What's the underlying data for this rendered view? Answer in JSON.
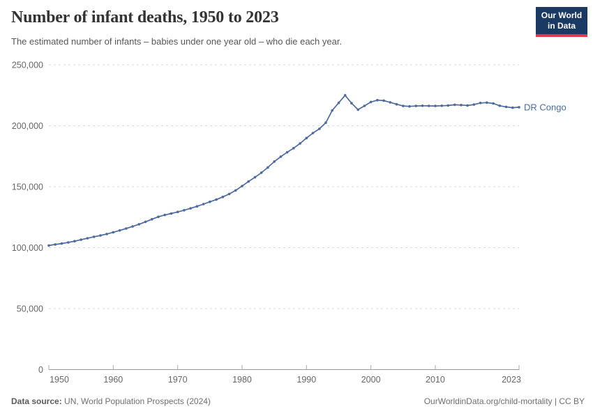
{
  "header": {
    "title": "Number of infant deaths, 1950 to 2023",
    "subtitle": "The estimated number of infants – babies under one year old – who die each year.",
    "logo": {
      "line1": "Our World",
      "line2": "in Data"
    }
  },
  "chart_data": {
    "type": "line",
    "title": "Number of infant deaths, 1950 to 2023",
    "xlabel": "",
    "ylabel": "",
    "xlim": [
      1950,
      2023
    ],
    "ylim": [
      0,
      250000
    ],
    "grid": "dashed-horizontal",
    "legend_position": "end-of-line-label",
    "x_ticks": [
      {
        "value": 1950,
        "label": "1950"
      },
      {
        "value": 1960,
        "label": "1960"
      },
      {
        "value": 1970,
        "label": "1970"
      },
      {
        "value": 1980,
        "label": "1980"
      },
      {
        "value": 1990,
        "label": "1990"
      },
      {
        "value": 2000,
        "label": "2000"
      },
      {
        "value": 2010,
        "label": "2010"
      },
      {
        "value": 2023,
        "label": "2023"
      }
    ],
    "y_ticks": [
      {
        "value": 0,
        "label": "0"
      },
      {
        "value": 50000,
        "label": "50,000"
      },
      {
        "value": 100000,
        "label": "100,000"
      },
      {
        "value": 150000,
        "label": "150,000"
      },
      {
        "value": 200000,
        "label": "200,000"
      },
      {
        "value": 250000,
        "label": "250,000"
      }
    ],
    "series": [
      {
        "name": "DR Congo",
        "color": "#4c6a9c",
        "x": [
          1950,
          1951,
          1952,
          1953,
          1954,
          1955,
          1956,
          1957,
          1958,
          1959,
          1960,
          1961,
          1962,
          1963,
          1964,
          1965,
          1966,
          1967,
          1968,
          1969,
          1970,
          1971,
          1972,
          1973,
          1974,
          1975,
          1976,
          1977,
          1978,
          1979,
          1980,
          1981,
          1982,
          1983,
          1984,
          1985,
          1986,
          1987,
          1988,
          1989,
          1990,
          1991,
          1992,
          1993,
          1994,
          1995,
          1996,
          1997,
          1998,
          1999,
          2000,
          2001,
          2002,
          2003,
          2004,
          2005,
          2006,
          2007,
          2008,
          2009,
          2010,
          2011,
          2012,
          2013,
          2014,
          2015,
          2016,
          2017,
          2018,
          2019,
          2020,
          2021,
          2022,
          2023
        ],
        "values": [
          101800,
          102600,
          103400,
          104300,
          105300,
          106500,
          107700,
          108900,
          110000,
          111200,
          112600,
          114100,
          115700,
          117400,
          119200,
          121200,
          123300,
          125300,
          126800,
          128000,
          129300,
          130700,
          132200,
          133900,
          135700,
          137600,
          139500,
          141600,
          144000,
          147000,
          150500,
          154200,
          157800,
          161500,
          165800,
          170600,
          174600,
          178200,
          181600,
          185500,
          189900,
          194000,
          197500,
          202500,
          212500,
          218800,
          225000,
          218500,
          213200,
          216300,
          219500,
          221000,
          220600,
          219200,
          217600,
          216200,
          215900,
          216200,
          216400,
          216300,
          216200,
          216400,
          216600,
          217200,
          217000,
          216600,
          217400,
          218700,
          219000,
          218300,
          216400,
          215500,
          214800,
          215200
        ]
      }
    ],
    "end_label": "DR Congo"
  },
  "footer": {
    "source_label": "Data source:",
    "source_text": " UN, World Population Prospects (2024)",
    "attribution": "OurWorldinData.org/child-mortality | CC BY"
  },
  "colors": {
    "line": "#4c6a9c",
    "logo_navy": "#1b3a63",
    "logo_red": "#d73a49",
    "gridline": "#dadada",
    "axis": "#999999",
    "text_muted": "#666666"
  }
}
